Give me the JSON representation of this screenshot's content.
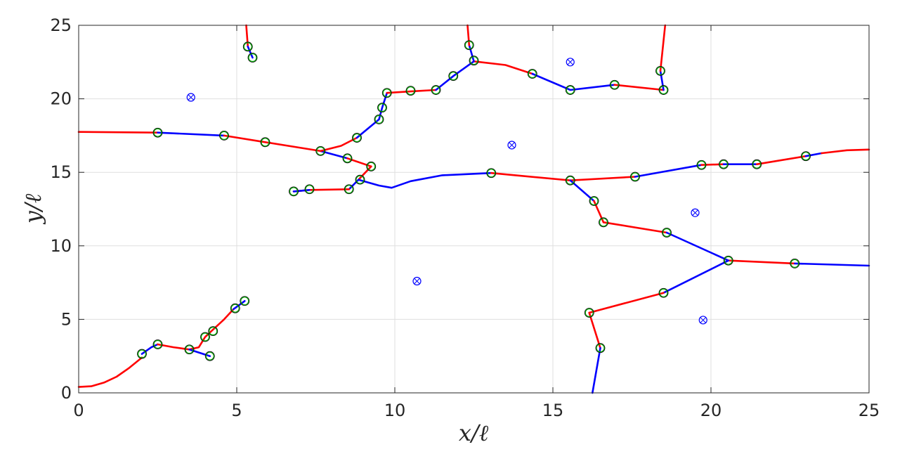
{
  "chart_data": {
    "type": "line",
    "title": "",
    "xlabel": "x/ℓ",
    "ylabel": "y/ℓ",
    "xlim": [
      0,
      25
    ],
    "ylim": [
      0,
      25
    ],
    "grid": true,
    "xticks": [
      "0",
      "5",
      "10",
      "15",
      "20",
      "25"
    ],
    "yticks": [
      "0",
      "5",
      "10",
      "15",
      "20",
      "25"
    ],
    "colors": {
      "red": "#ff0000",
      "blue": "#0000ff",
      "green_marker": "#00aa00",
      "axis": "#262626"
    },
    "series": [
      {
        "color": "red",
        "points": [
          [
            0,
            0.4
          ],
          [
            0.4,
            0.45
          ],
          [
            0.8,
            0.7
          ],
          [
            1.2,
            1.1
          ],
          [
            1.6,
            1.7
          ],
          [
            2.0,
            2.4
          ]
        ]
      },
      {
        "color": "blue",
        "points": [
          [
            2.0,
            2.65
          ],
          [
            2.3,
            3.1
          ],
          [
            2.5,
            3.3
          ]
        ]
      },
      {
        "color": "red",
        "points": [
          [
            2.5,
            3.3
          ],
          [
            3.0,
            3.1
          ],
          [
            3.5,
            2.95
          ],
          [
            3.8,
            3.1
          ],
          [
            4.0,
            3.8
          ],
          [
            4.2,
            4.2
          ],
          [
            4.6,
            5.0
          ],
          [
            4.9,
            5.7
          ]
        ]
      },
      {
        "color": "blue",
        "points": [
          [
            3.5,
            2.95
          ],
          [
            4.15,
            2.5
          ]
        ]
      },
      {
        "color": "blue",
        "points": [
          [
            4.9,
            5.7
          ],
          [
            5.25,
            6.25
          ]
        ]
      },
      {
        "color": "red",
        "points": [
          [
            0,
            17.75
          ],
          [
            2.5,
            17.7
          ]
        ]
      },
      {
        "color": "blue",
        "points": [
          [
            2.5,
            17.7
          ],
          [
            4.6,
            17.5
          ]
        ]
      },
      {
        "color": "red",
        "points": [
          [
            4.6,
            17.5
          ],
          [
            5.9,
            17.05
          ],
          [
            7.65,
            16.45
          ]
        ]
      },
      {
        "color": "blue",
        "points": [
          [
            7.65,
            16.45
          ],
          [
            8.5,
            15.95
          ]
        ]
      },
      {
        "color": "red",
        "points": [
          [
            8.5,
            15.95
          ],
          [
            9.25,
            15.4
          ]
        ]
      },
      {
        "color": "red",
        "points": [
          [
            9.25,
            15.4
          ],
          [
            8.85,
            14.5
          ]
        ]
      },
      {
        "color": "blue",
        "points": [
          [
            8.85,
            14.5
          ],
          [
            8.55,
            13.85
          ]
        ]
      },
      {
        "color": "blue",
        "points": [
          [
            8.85,
            14.5
          ],
          [
            9.5,
            14.1
          ],
          [
            9.9,
            13.95
          ],
          [
            10.5,
            14.4
          ],
          [
            11.5,
            14.8
          ],
          [
            13.05,
            14.95
          ]
        ]
      },
      {
        "color": "red",
        "points": [
          [
            8.55,
            13.85
          ],
          [
            7.3,
            13.8
          ],
          [
            6.8,
            13.7
          ]
        ]
      },
      {
        "color": "blue",
        "points": [
          [
            6.8,
            13.7
          ],
          [
            7.3,
            13.8
          ]
        ]
      },
      {
        "color": "red",
        "points": [
          [
            7.65,
            16.45
          ],
          [
            8.3,
            16.8
          ],
          [
            8.8,
            17.35
          ]
        ]
      },
      {
        "color": "blue",
        "points": [
          [
            8.8,
            17.35
          ],
          [
            9.5,
            18.6
          ],
          [
            9.6,
            19.4
          ],
          [
            9.75,
            20.4
          ]
        ]
      },
      {
        "color": "red",
        "points": [
          [
            9.75,
            20.4
          ],
          [
            10.5,
            20.5
          ],
          [
            11.3,
            20.6
          ]
        ]
      },
      {
        "color": "blue",
        "points": [
          [
            11.3,
            20.6
          ],
          [
            11.85,
            21.55
          ],
          [
            12.5,
            22.55
          ]
        ]
      },
      {
        "color": "red",
        "points": [
          [
            12.5,
            22.55
          ],
          [
            13.5,
            22.3
          ],
          [
            14.35,
            21.7
          ]
        ]
      },
      {
        "color": "blue",
        "points": [
          [
            14.35,
            21.7
          ],
          [
            15.55,
            20.6
          ],
          [
            16.95,
            20.95
          ]
        ]
      },
      {
        "color": "red",
        "points": [
          [
            16.95,
            20.95
          ],
          [
            18.5,
            20.6
          ]
        ]
      },
      {
        "color": "blue",
        "points": [
          [
            18.5,
            20.6
          ],
          [
            18.4,
            21.9
          ]
        ]
      },
      {
        "color": "red",
        "points": [
          [
            18.4,
            21.9
          ],
          [
            18.55,
            25
          ]
        ]
      },
      {
        "color": "blue",
        "points": [
          [
            12.5,
            22.55
          ],
          [
            12.35,
            23.65
          ]
        ]
      },
      {
        "color": "red",
        "points": [
          [
            12.35,
            23.65
          ],
          [
            12.3,
            25
          ]
        ]
      },
      {
        "color": "red",
        "points": [
          [
            5.3,
            25
          ],
          [
            5.35,
            23.55
          ]
        ]
      },
      {
        "color": "blue",
        "points": [
          [
            5.35,
            23.55
          ],
          [
            5.5,
            22.8
          ]
        ]
      },
      {
        "color": "red",
        "points": [
          [
            13.05,
            14.95
          ],
          [
            15.55,
            14.45
          ]
        ]
      },
      {
        "color": "red",
        "points": [
          [
            15.55,
            14.45
          ],
          [
            17.6,
            14.7
          ]
        ]
      },
      {
        "color": "blue",
        "points": [
          [
            17.6,
            14.7
          ],
          [
            19.7,
            15.5
          ]
        ]
      },
      {
        "color": "red",
        "points": [
          [
            19.7,
            15.5
          ],
          [
            20.4,
            15.55
          ]
        ]
      },
      {
        "color": "blue",
        "points": [
          [
            20.4,
            15.55
          ],
          [
            21.45,
            15.55
          ]
        ]
      },
      {
        "color": "red",
        "points": [
          [
            21.45,
            15.55
          ],
          [
            23.0,
            16.1
          ]
        ]
      },
      {
        "color": "blue",
        "points": [
          [
            23.0,
            16.1
          ],
          [
            23.5,
            16.3
          ]
        ]
      },
      {
        "color": "red",
        "points": [
          [
            23.5,
            16.3
          ],
          [
            24.3,
            16.5
          ],
          [
            25,
            16.55
          ]
        ]
      },
      {
        "color": "blue",
        "points": [
          [
            15.55,
            14.45
          ],
          [
            16.3,
            13.05
          ]
        ]
      },
      {
        "color": "red",
        "points": [
          [
            16.3,
            13.05
          ],
          [
            16.6,
            11.6
          ]
        ]
      },
      {
        "color": "red",
        "points": [
          [
            16.6,
            11.6
          ],
          [
            18.6,
            10.9
          ]
        ]
      },
      {
        "color": "blue",
        "points": [
          [
            18.6,
            10.9
          ],
          [
            20.55,
            9.0
          ]
        ]
      },
      {
        "color": "red",
        "points": [
          [
            20.55,
            9.0
          ],
          [
            22.65,
            8.8
          ]
        ]
      },
      {
        "color": "blue",
        "points": [
          [
            22.65,
            8.8
          ],
          [
            25,
            8.65
          ]
        ]
      },
      {
        "color": "blue",
        "points": [
          [
            20.55,
            9.0
          ],
          [
            18.5,
            6.8
          ]
        ]
      },
      {
        "color": "red",
        "points": [
          [
            18.5,
            6.8
          ],
          [
            16.15,
            5.45
          ]
        ]
      },
      {
        "color": "red",
        "points": [
          [
            16.15,
            5.45
          ],
          [
            16.5,
            3.05
          ]
        ]
      },
      {
        "color": "blue",
        "points": [
          [
            16.5,
            3.05
          ],
          [
            16.25,
            0
          ]
        ]
      }
    ],
    "markers_open": [
      [
        2.0,
        2.65
      ],
      [
        2.5,
        3.3
      ],
      [
        3.5,
        2.95
      ],
      [
        4.0,
        3.8
      ],
      [
        4.25,
        4.2
      ],
      [
        4.95,
        5.75
      ],
      [
        5.25,
        6.25
      ],
      [
        4.15,
        2.5
      ],
      [
        2.5,
        17.7
      ],
      [
        4.6,
        17.5
      ],
      [
        5.9,
        17.05
      ],
      [
        7.65,
        16.45
      ],
      [
        8.5,
        15.95
      ],
      [
        9.25,
        15.4
      ],
      [
        8.9,
        14.5
      ],
      [
        8.55,
        13.85
      ],
      [
        7.3,
        13.85
      ],
      [
        6.8,
        13.7
      ],
      [
        8.8,
        17.35
      ],
      [
        9.5,
        18.6
      ],
      [
        9.6,
        19.4
      ],
      [
        9.75,
        20.4
      ],
      [
        10.5,
        20.55
      ],
      [
        11.3,
        20.6
      ],
      [
        11.85,
        21.55
      ],
      [
        12.5,
        22.6
      ],
      [
        12.35,
        23.65
      ],
      [
        14.35,
        21.7
      ],
      [
        15.55,
        20.6
      ],
      [
        16.95,
        20.95
      ],
      [
        18.5,
        20.6
      ],
      [
        18.4,
        21.9
      ],
      [
        5.35,
        23.55
      ],
      [
        5.5,
        22.8
      ],
      [
        13.05,
        14.95
      ],
      [
        15.55,
        14.45
      ],
      [
        17.6,
        14.7
      ],
      [
        19.7,
        15.5
      ],
      [
        20.4,
        15.55
      ],
      [
        21.45,
        15.55
      ],
      [
        23.0,
        16.1
      ],
      [
        16.3,
        13.05
      ],
      [
        16.6,
        11.6
      ],
      [
        18.6,
        10.9
      ],
      [
        20.55,
        9.0
      ],
      [
        22.65,
        8.8
      ],
      [
        18.5,
        6.8
      ],
      [
        16.15,
        5.45
      ],
      [
        16.5,
        3.05
      ]
    ],
    "markers_crossed": [
      [
        3.55,
        20.1
      ],
      [
        15.55,
        22.5
      ],
      [
        13.7,
        16.85
      ],
      [
        19.5,
        12.25
      ],
      [
        10.7,
        7.6
      ],
      [
        19.75,
        4.95
      ]
    ]
  }
}
